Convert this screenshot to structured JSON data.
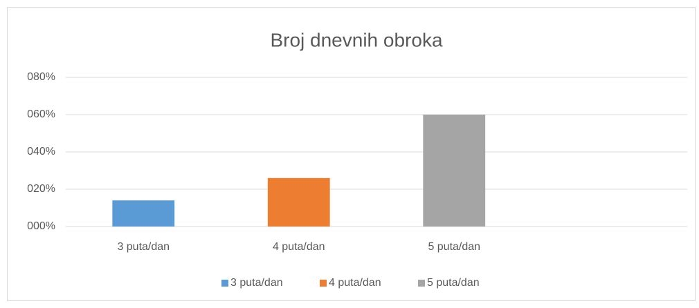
{
  "chart_data": {
    "type": "bar",
    "title": "Broj dnevnih obroka",
    "categories": [
      "3 puta/dan",
      "4 puta/dan",
      "5 puta/dan",
      null
    ],
    "values": [
      14,
      26,
      60,
      null
    ],
    "colors": [
      "#5b9bd5",
      "#ed7d31",
      "#a5a5a5",
      null
    ],
    "ylim": [
      0,
      80
    ],
    "yticks": [
      {
        "value": 0,
        "label": "000%"
      },
      {
        "value": 20,
        "label": "020%"
      },
      {
        "value": 40,
        "label": "040%"
      },
      {
        "value": 60,
        "label": "060%"
      },
      {
        "value": 80,
        "label": "080%"
      }
    ],
    "grid": true,
    "legend": "bottom"
  }
}
